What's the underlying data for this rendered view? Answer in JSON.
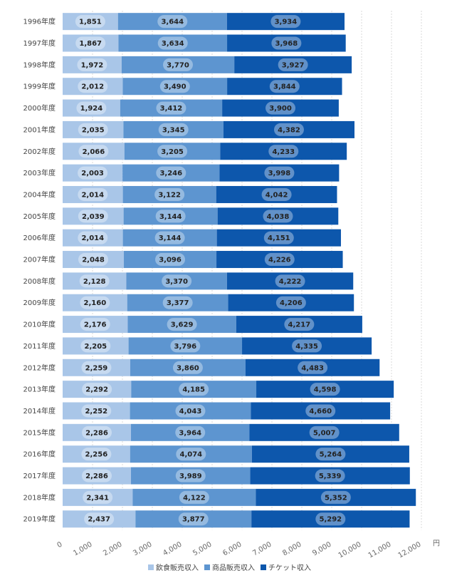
{
  "chart_data": {
    "type": "bar",
    "orientation": "horizontal",
    "stacked": true,
    "categories": [
      "1996年度",
      "1997年度",
      "1998年度",
      "1999年度",
      "2000年度",
      "2001年度",
      "2002年度",
      "2003年度",
      "2004年度",
      "2005年度",
      "2006年度",
      "2007年度",
      "2008年度",
      "2009年度",
      "2010年度",
      "2011年度",
      "2012年度",
      "2013年度",
      "2014年度",
      "2015年度",
      "2016年度",
      "2017年度",
      "2018年度",
      "2019年度"
    ],
    "series": [
      {
        "name": "飲食販売収入",
        "color": "#a9c6e8",
        "values": [
          1851,
          1867,
          1972,
          2012,
          1924,
          2035,
          2066,
          2003,
          2014,
          2039,
          2014,
          2048,
          2128,
          2160,
          2176,
          2205,
          2259,
          2292,
          2252,
          2286,
          2256,
          2286,
          2341,
          2437
        ]
      },
      {
        "name": "商品販売収入",
        "color": "#5d95d0",
        "values": [
          3644,
          3634,
          3770,
          3490,
          3412,
          3345,
          3205,
          3246,
          3122,
          3144,
          3144,
          3096,
          3370,
          3377,
          3629,
          3796,
          3860,
          4185,
          4043,
          3964,
          4074,
          3989,
          4122,
          3877
        ]
      },
      {
        "name": "チケット収入",
        "color": "#0d57ac",
        "values": [
          3934,
          3968,
          3927,
          3844,
          3900,
          4382,
          4233,
          3998,
          4042,
          4038,
          4151,
          4226,
          4222,
          4206,
          4217,
          4335,
          4483,
          4598,
          4660,
          5007,
          5264,
          5339,
          5352,
          5292
        ]
      }
    ],
    "xticks": [
      0,
      1000,
      2000,
      3000,
      4000,
      5000,
      6000,
      7000,
      8000,
      9000,
      10000,
      11000,
      12000
    ],
    "xtick_labels": [
      "0",
      "1,000",
      "2,000",
      "3,000",
      "4,000",
      "5,000",
      "6,000",
      "7,000",
      "8,000",
      "9,000",
      "10,000",
      "11,000",
      "12,000"
    ],
    "xlim": [
      0,
      12000
    ],
    "unit": "円",
    "title": "",
    "xlabel": "",
    "ylabel": "",
    "grid": true,
    "legend_position": "bottom"
  }
}
